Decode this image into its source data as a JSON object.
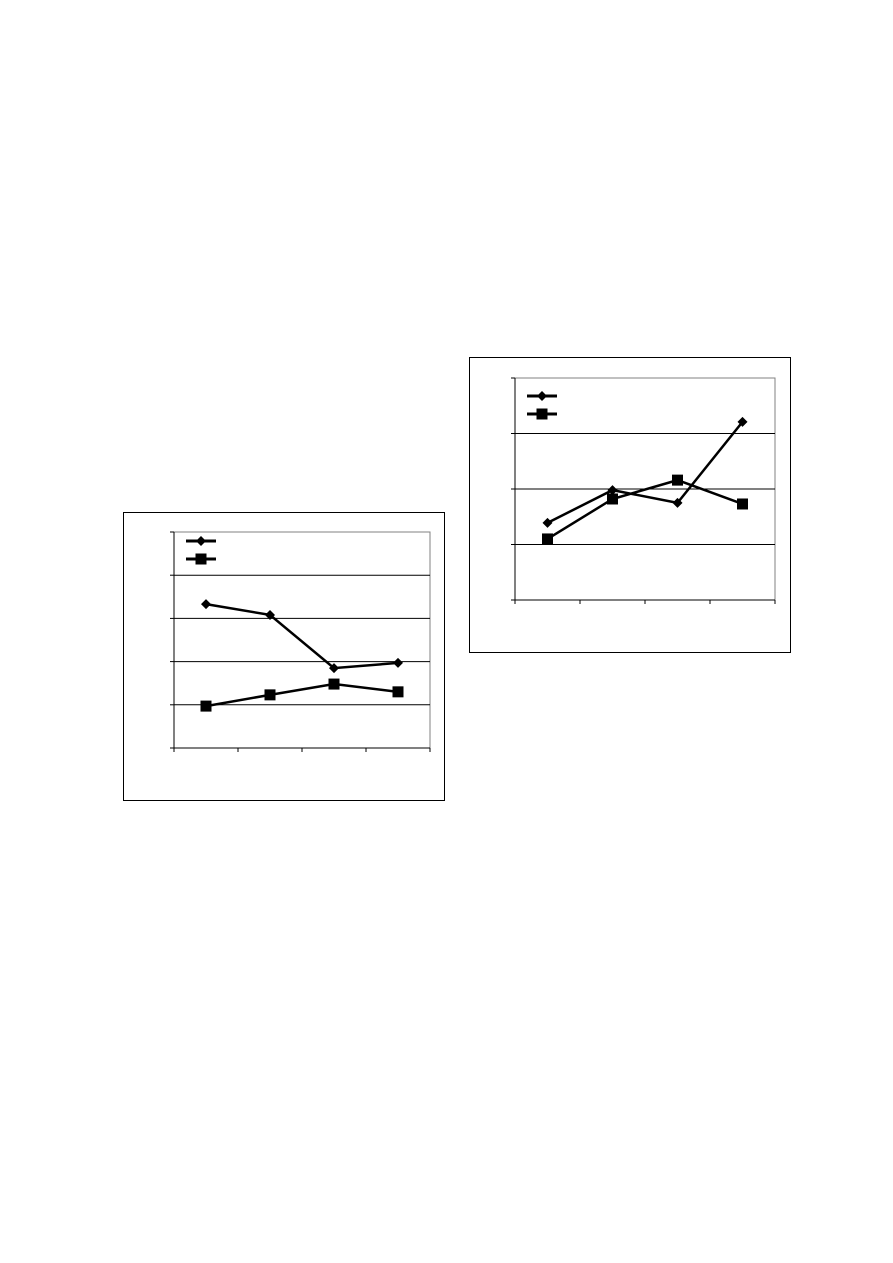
{
  "chart_data": [
    {
      "type": "line",
      "categories": [
        "",
        "",
        "",
        ""
      ],
      "ylim": [
        0,
        5
      ],
      "grid": true,
      "legend": "top-left",
      "series": [
        {
          "marker": "diamond",
          "values": [
            3.33,
            3.08,
            1.85,
            1.97
          ]
        },
        {
          "marker": "square",
          "values": [
            0.97,
            1.23,
            1.48,
            1.3
          ]
        }
      ],
      "colors": {
        "line": "#000000",
        "grid": "#000000",
        "plot_border": "#808080"
      }
    },
    {
      "type": "line",
      "categories": [
        "",
        "",
        "",
        ""
      ],
      "ylim": [
        0,
        4
      ],
      "grid": true,
      "legend": "top-left",
      "series": [
        {
          "marker": "diamond",
          "values": [
            1.39,
            1.98,
            1.75,
            3.21
          ]
        },
        {
          "marker": "square",
          "values": [
            1.1,
            1.82,
            2.16,
            1.73
          ]
        }
      ],
      "colors": {
        "line": "#000000",
        "grid": "#000000",
        "plot_border": "#808080"
      }
    }
  ]
}
